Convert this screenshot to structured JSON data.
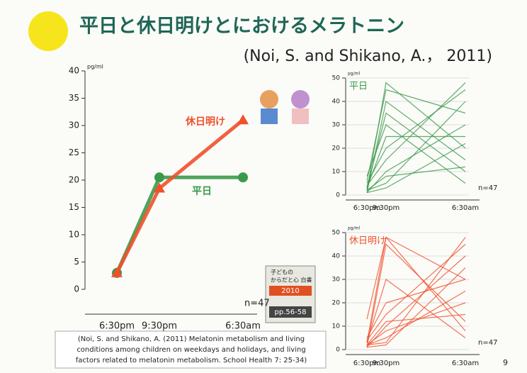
{
  "slide": {
    "title": "平日と休日明けとにおけるメラトニン",
    "citation": "(Noi, S. and Shikano, A.， 2011)",
    "reference": [
      "(Noi, S. and Shikano, A. (2011) Melatonin metabolism and living",
      "conditions among children on weekdays and holidays, and living",
      "factors related to melatonin metabolism. School Health 7: 25-34)"
    ],
    "book": [
      "子どもの",
      "からだと心 白書",
      "2010",
      "pp.56-58"
    ],
    "page": "9"
  },
  "chart_data": [
    {
      "type": "line",
      "unit": "pg/ml",
      "note": "n=47",
      "categories": [
        "6:30pm",
        "9:30pm",
        "6:30am"
      ],
      "ylim": [
        0,
        40
      ],
      "yticks": [
        0,
        5,
        10,
        15,
        20,
        25,
        30,
        35,
        40
      ],
      "series": [
        {
          "name": "平日",
          "color": "#3a9a4a",
          "marker": "circle",
          "values": [
            3,
            20.5,
            20.5
          ]
        },
        {
          "name": "休日明け",
          "color": "#f0502a",
          "marker": "triangle",
          "values": [
            3,
            18.5,
            31
          ]
        }
      ]
    },
    {
      "type": "spaghetti",
      "title": "平日",
      "unit": "pg/ml",
      "note": "n=47",
      "categories": [
        "6:30pm",
        "9:30pm",
        "6:30am"
      ],
      "ylim": [
        0,
        50
      ],
      "yticks": [
        0,
        10,
        20,
        30,
        40,
        50
      ],
      "color": "#3a9a4a",
      "series": [
        {
          "values": [
            2,
            48,
            20
          ]
        },
        {
          "values": [
            3,
            35,
            10
          ]
        },
        {
          "values": [
            5,
            20,
            45
          ]
        },
        {
          "values": [
            1,
            10,
            30
          ]
        },
        {
          "values": [
            2,
            5,
            40
          ]
        },
        {
          "values": [
            8,
            30,
            5
          ]
        },
        {
          "values": [
            3,
            25,
            25
          ]
        },
        {
          "values": [
            1,
            40,
            15
          ]
        },
        {
          "values": [
            4,
            15,
            48
          ]
        },
        {
          "values": [
            2,
            8,
            12
          ]
        },
        {
          "values": [
            6,
            45,
            35
          ]
        },
        {
          "values": [
            1,
            3,
            22
          ]
        }
      ]
    },
    {
      "type": "spaghetti",
      "title": "休日明け",
      "unit": "pg/ml",
      "note": "n=47",
      "categories": [
        "6:30pm",
        "9:30pm",
        "6:30am"
      ],
      "ylim": [
        0,
        50
      ],
      "yticks": [
        0,
        10,
        20,
        30,
        40,
        50
      ],
      "color": "#f0502a",
      "series": [
        {
          "values": [
            2,
            3,
            48
          ]
        },
        {
          "values": [
            1,
            10,
            40
          ]
        },
        {
          "values": [
            3,
            48,
            8
          ]
        },
        {
          "values": [
            5,
            20,
            30
          ]
        },
        {
          "values": [
            2,
            5,
            25
          ]
        },
        {
          "values": [
            1,
            45,
            12
          ]
        },
        {
          "values": [
            4,
            15,
            45
          ]
        },
        {
          "values": [
            2,
            8,
            20
          ]
        },
        {
          "values": [
            13,
            48,
            30
          ]
        },
        {
          "values": [
            1,
            2,
            35
          ]
        },
        {
          "values": [
            3,
            30,
            5
          ]
        },
        {
          "values": [
            2,
            12,
            15
          ]
        }
      ]
    }
  ]
}
